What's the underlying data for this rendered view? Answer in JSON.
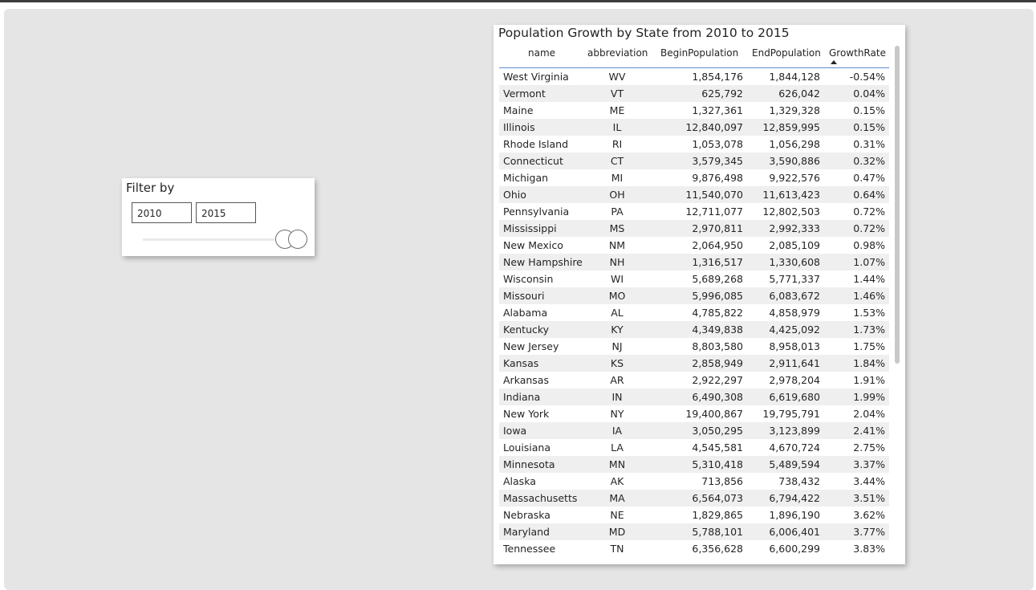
{
  "slicer": {
    "title": "Filter by",
    "start_value": "2010",
    "end_value": "2015"
  },
  "table": {
    "title": "Population Growth by State from 2010 to 2015",
    "columns": [
      "name",
      "abbreviation",
      "BeginPopulation",
      "EndPopulation",
      "GrowthRate"
    ],
    "sorted_column": "GrowthRate",
    "sort_direction": "ascending",
    "rows": [
      {
        "name": "West Virginia",
        "abbr": "WV",
        "begin": "1,854,176",
        "end": "1,844,128",
        "growth": "-0.54%"
      },
      {
        "name": "Vermont",
        "abbr": "VT",
        "begin": "625,792",
        "end": "626,042",
        "growth": "0.04%"
      },
      {
        "name": "Maine",
        "abbr": "ME",
        "begin": "1,327,361",
        "end": "1,329,328",
        "growth": "0.15%"
      },
      {
        "name": "Illinois",
        "abbr": "IL",
        "begin": "12,840,097",
        "end": "12,859,995",
        "growth": "0.15%"
      },
      {
        "name": "Rhode Island",
        "abbr": "RI",
        "begin": "1,053,078",
        "end": "1,056,298",
        "growth": "0.31%"
      },
      {
        "name": "Connecticut",
        "abbr": "CT",
        "begin": "3,579,345",
        "end": "3,590,886",
        "growth": "0.32%"
      },
      {
        "name": "Michigan",
        "abbr": "MI",
        "begin": "9,876,498",
        "end": "9,922,576",
        "growth": "0.47%"
      },
      {
        "name": "Ohio",
        "abbr": "OH",
        "begin": "11,540,070",
        "end": "11,613,423",
        "growth": "0.64%"
      },
      {
        "name": "Pennsylvania",
        "abbr": "PA",
        "begin": "12,711,077",
        "end": "12,802,503",
        "growth": "0.72%"
      },
      {
        "name": "Mississippi",
        "abbr": "MS",
        "begin": "2,970,811",
        "end": "2,992,333",
        "growth": "0.72%"
      },
      {
        "name": "New Mexico",
        "abbr": "NM",
        "begin": "2,064,950",
        "end": "2,085,109",
        "growth": "0.98%"
      },
      {
        "name": "New Hampshire",
        "abbr": "NH",
        "begin": "1,316,517",
        "end": "1,330,608",
        "growth": "1.07%"
      },
      {
        "name": "Wisconsin",
        "abbr": "WI",
        "begin": "5,689,268",
        "end": "5,771,337",
        "growth": "1.44%"
      },
      {
        "name": "Missouri",
        "abbr": "MO",
        "begin": "5,996,085",
        "end": "6,083,672",
        "growth": "1.46%"
      },
      {
        "name": "Alabama",
        "abbr": "AL",
        "begin": "4,785,822",
        "end": "4,858,979",
        "growth": "1.53%"
      },
      {
        "name": "Kentucky",
        "abbr": "KY",
        "begin": "4,349,838",
        "end": "4,425,092",
        "growth": "1.73%"
      },
      {
        "name": "New Jersey",
        "abbr": "NJ",
        "begin": "8,803,580",
        "end": "8,958,013",
        "growth": "1.75%"
      },
      {
        "name": "Kansas",
        "abbr": "KS",
        "begin": "2,858,949",
        "end": "2,911,641",
        "growth": "1.84%"
      },
      {
        "name": "Arkansas",
        "abbr": "AR",
        "begin": "2,922,297",
        "end": "2,978,204",
        "growth": "1.91%"
      },
      {
        "name": "Indiana",
        "abbr": "IN",
        "begin": "6,490,308",
        "end": "6,619,680",
        "growth": "1.99%"
      },
      {
        "name": "New York",
        "abbr": "NY",
        "begin": "19,400,867",
        "end": "19,795,791",
        "growth": "2.04%"
      },
      {
        "name": "Iowa",
        "abbr": "IA",
        "begin": "3,050,295",
        "end": "3,123,899",
        "growth": "2.41%"
      },
      {
        "name": "Louisiana",
        "abbr": "LA",
        "begin": "4,545,581",
        "end": "4,670,724",
        "growth": "2.75%"
      },
      {
        "name": "Minnesota",
        "abbr": "MN",
        "begin": "5,310,418",
        "end": "5,489,594",
        "growth": "3.37%"
      },
      {
        "name": "Alaska",
        "abbr": "AK",
        "begin": "713,856",
        "end": "738,432",
        "growth": "3.44%"
      },
      {
        "name": "Massachusetts",
        "abbr": "MA",
        "begin": "6,564,073",
        "end": "6,794,422",
        "growth": "3.51%"
      },
      {
        "name": "Nebraska",
        "abbr": "NE",
        "begin": "1,829,865",
        "end": "1,896,190",
        "growth": "3.62%"
      },
      {
        "name": "Maryland",
        "abbr": "MD",
        "begin": "5,788,101",
        "end": "6,006,401",
        "growth": "3.77%"
      },
      {
        "name": "Tennessee",
        "abbr": "TN",
        "begin": "6,356,628",
        "end": "6,600,299",
        "growth": "3.83%"
      }
    ]
  },
  "colors": {
    "canvas_bg": "#e5e5e5",
    "header_rule": "#5b8fd3",
    "zebra_row": "#efefef",
    "text": "#252423"
  }
}
